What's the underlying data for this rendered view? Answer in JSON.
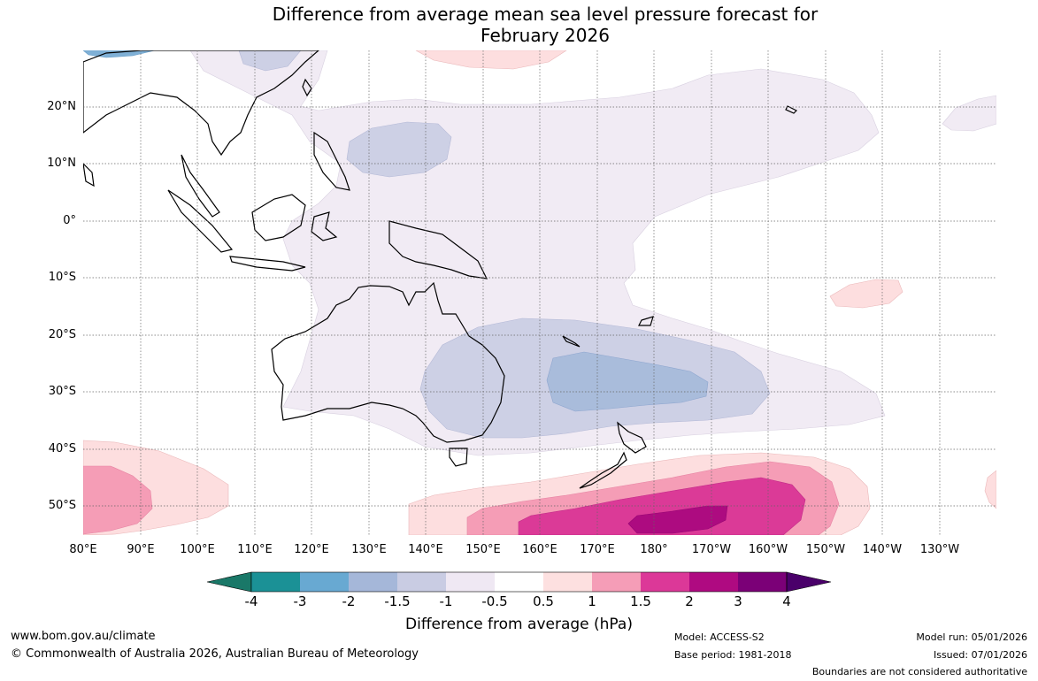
{
  "title": {
    "line1": "Difference from average mean sea level pressure forecast for",
    "line2": "February 2026"
  },
  "map": {
    "lat_labels": [
      "20°N",
      "10°N",
      "0°",
      "10°S",
      "20°S",
      "30°S",
      "40°S",
      "50°S"
    ],
    "lon_labels": [
      "80°E",
      "90°E",
      "100°E",
      "110°E",
      "120°E",
      "130°E",
      "140°E",
      "150°E",
      "160°E",
      "170°E",
      "180°",
      "170°W",
      "160°W",
      "150°W",
      "140°W",
      "130°W"
    ]
  },
  "colorbar": {
    "ticks": [
      "-4",
      "-3",
      "-2",
      "-1.5",
      "-1",
      "-0.5",
      "0.5",
      "1",
      "1.5",
      "2",
      "3",
      "4"
    ],
    "colors": [
      "#1a7868",
      "#1b9196",
      "#68a9d2",
      "#a5b7d9",
      "#c9cce3",
      "#efe8f3",
      "#ffffff",
      "#fde0e0",
      "#f59db7",
      "#dc3898",
      "#af0a81",
      "#7b0077",
      "#4a006a"
    ],
    "label": "Difference from average (hPa)"
  },
  "footer": {
    "website": "www.bom.gov.au/climate",
    "copyright": "© Commonwealth of Australia 2026, Australian Bureau of Meteorology",
    "model": "Model: ACCESS-S2",
    "base_period": "Base period: 1981-2018",
    "model_run": "Model run: 05/01/2026",
    "issued": "Issued: 07/01/2026",
    "disclaimer": "Boundaries are not considered authoritative"
  }
}
